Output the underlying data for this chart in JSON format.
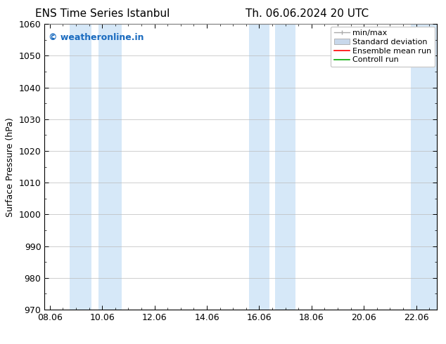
{
  "title1": "ENS Time Series Istanbul",
  "title2": "Th. 06.06.2024 20 UTC",
  "ylabel": "Surface Pressure (hPa)",
  "ylim": [
    970,
    1060
  ],
  "yticks": [
    970,
    980,
    990,
    1000,
    1010,
    1020,
    1030,
    1040,
    1050,
    1060
  ],
  "xtick_labels": [
    "08.06",
    "10.06",
    "12.06",
    "14.06",
    "16.06",
    "18.06",
    "20.06",
    "22.06"
  ],
  "xtick_positions": [
    0,
    2,
    4,
    6,
    8,
    10,
    12,
    14
  ],
  "xlim": [
    -0.2,
    14.8
  ],
  "watermark": "© weatheronline.in",
  "watermark_color": "#1a6bbf",
  "bg_color": "#ffffff",
  "plot_bg_color": "#ffffff",
  "shaded_bands": [
    {
      "x_start": 0.75,
      "x_end": 1.6,
      "color": "#d6e8f8"
    },
    {
      "x_start": 1.85,
      "x_end": 2.75,
      "color": "#d6e8f8"
    },
    {
      "x_start": 7.6,
      "x_end": 8.4,
      "color": "#d6e8f8"
    },
    {
      "x_start": 8.6,
      "x_end": 9.4,
      "color": "#d6e8f8"
    },
    {
      "x_start": 13.8,
      "x_end": 14.8,
      "color": "#d6e8f8"
    }
  ],
  "legend_items": [
    {
      "label": "min/max",
      "color": "#aaaaaa",
      "type": "errorbar"
    },
    {
      "label": "Standard deviation",
      "color": "#c8d8eb",
      "type": "band"
    },
    {
      "label": "Ensemble mean run",
      "color": "#ff0000",
      "type": "line"
    },
    {
      "label": "Controll run",
      "color": "#00aa00",
      "type": "line"
    }
  ],
  "font_size_title": 11,
  "font_size_axis": 9,
  "font_size_legend": 8,
  "font_size_watermark": 9,
  "grid_color": "#bbbbbb",
  "spine_color": "#000000"
}
